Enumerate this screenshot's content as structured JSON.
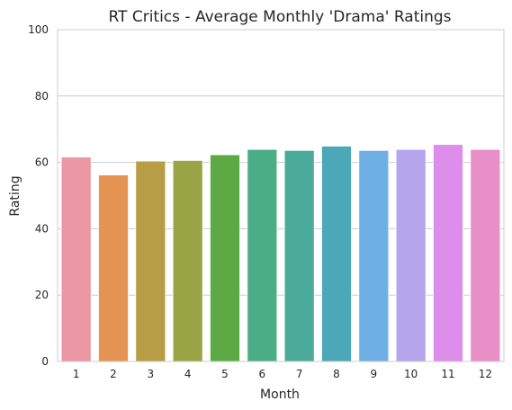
{
  "chart_data": {
    "type": "bar",
    "title": "RT Critics - Average Monthly 'Drama' Ratings",
    "xlabel": "Month",
    "ylabel": "Rating",
    "categories": [
      "1",
      "2",
      "3",
      "4",
      "5",
      "6",
      "7",
      "8",
      "9",
      "10",
      "11",
      "12"
    ],
    "values": [
      61.6,
      56.2,
      60.4,
      60.6,
      62.3,
      63.9,
      63.6,
      64.9,
      63.6,
      63.9,
      65.4,
      63.9
    ],
    "ylim": [
      0,
      100
    ],
    "yticks": [
      0,
      20,
      40,
      60,
      80,
      100
    ],
    "grid": "horizontal",
    "colors": [
      "#ea96a3",
      "#e59353",
      "#b79d45",
      "#99a445",
      "#5daa45",
      "#4aad86",
      "#4bab9b",
      "#4ca8b8",
      "#6fb0e4",
      "#b4a5ec",
      "#dd8eeb",
      "#e98fc7"
    ]
  }
}
